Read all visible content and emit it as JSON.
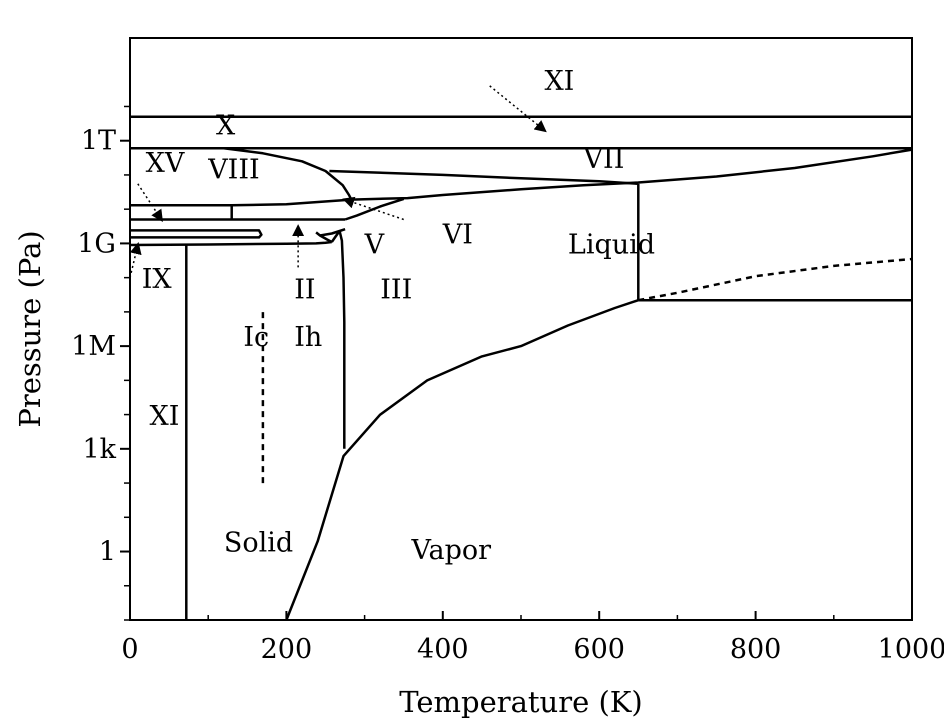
{
  "chart_data": {
    "type": "line",
    "xlabel": "Temperature (K)",
    "ylabel": "Pressure (Pa)",
    "x_range": [
      0,
      1000
    ],
    "y_scale": "log10",
    "y_range": [
      0.01,
      1000000000000000.0
    ],
    "x_ticks": [
      {
        "value": 0,
        "label": "0"
      },
      {
        "value": 200,
        "label": "200"
      },
      {
        "value": 400,
        "label": "400"
      },
      {
        "value": 600,
        "label": "600"
      },
      {
        "value": 800,
        "label": "800"
      },
      {
        "value": 1000,
        "label": "1000"
      }
    ],
    "y_ticks": [
      {
        "value": 1,
        "label": "1"
      },
      {
        "value": 1000,
        "label": "1k"
      },
      {
        "value": 1000000,
        "label": "1M"
      },
      {
        "value": 1000000000,
        "label": "1G"
      },
      {
        "value": 1000000000000,
        "label": "1T"
      }
    ],
    "grid": false,
    "line_color": "#000000",
    "regions": [
      {
        "label": "XI",
        "x": 530,
        "y": 30000000000000.0
      },
      {
        "label": "X",
        "x": 110,
        "y": 1500000000000.0
      },
      {
        "label": "XV",
        "x": 20,
        "y": 120000000000.0
      },
      {
        "label": "VIII",
        "x": 100,
        "y": 80000000000.0
      },
      {
        "label": "VII",
        "x": 580,
        "y": 160000000000.0
      },
      {
        "label": "1G",
        "x": 0,
        "y": 0
      },
      {
        "label": "VI",
        "x": 400,
        "y": 1000000000.0
      },
      {
        "label": "V",
        "x": 300,
        "y": 500000000.0
      },
      {
        "label": "IX",
        "x": 15,
        "y": 50000000.0
      },
      {
        "label": "II",
        "x": 210,
        "y": 25000000.0
      },
      {
        "label": "III",
        "x": 320,
        "y": 25000000.0
      },
      {
        "label": "Liquid",
        "x": 560,
        "y": 500000000.0
      },
      {
        "label": "Ic",
        "x": 145,
        "y": 1000000.0
      },
      {
        "label": "Ih",
        "x": 210,
        "y": 1000000.0
      },
      {
        "label": "XI",
        "x": 25,
        "y": 5000.0
      },
      {
        "label": "Solid",
        "x": 120,
        "y": 1
      },
      {
        "label": "Vapor",
        "x": 360,
        "y": 0.6
      }
    ],
    "series": [
      {
        "style": "solid",
        "x": [
          0,
          1000
        ],
        "y": [
          5000000000000.0,
          5000000000000.0
        ]
      },
      {
        "style": "solid",
        "x": [
          0,
          1000
        ],
        "y": [
          600000000000.0,
          600000000000.0
        ]
      },
      {
        "style": "solid",
        "x": [
          120,
          170,
          220,
          250,
          272,
          280,
          283
        ],
        "y": [
          600000000000.0,
          430000000000.0,
          250000000000.0,
          130000000000.0,
          50000000000.0,
          26000000000.0,
          19000000000.0
        ]
      },
      {
        "style": "solid",
        "x": [
          255,
          400,
          500,
          600,
          650
        ],
        "y": [
          130000000000.0,
          100000000000.0,
          80000000000.0,
          65000000000.0,
          55000000000.0
        ]
      },
      {
        "style": "solid",
        "x": [
          0,
          130,
          200,
          283,
          355,
          400,
          500,
          580,
          650,
          750,
          850,
          950,
          1000
        ],
        "y": [
          13000000000.0,
          13000000000.0,
          14000000000.0,
          19000000000.0,
          21000000000.0,
          26000000000.0,
          38000000000.0,
          50000000000.0,
          60000000000.0,
          90000000000.0,
          160000000000.0,
          350000000000.0,
          550000000000.0
        ]
      },
      {
        "style": "solid",
        "x": [
          130,
          130
        ],
        "y": [
          5000000000.0,
          13000000000.0
        ]
      },
      {
        "style": "solid",
        "x": [
          0,
          275
        ],
        "y": [
          5000000000.0,
          5000000000.0
        ]
      },
      {
        "style": "solid",
        "x": [
          275,
          290,
          320,
          350
        ],
        "y": [
          5000000000.0,
          6500000000.0,
          12000000000.0,
          20000000000.0
        ]
      },
      {
        "style": "solid",
        "x": [
          0,
          165,
          168,
          165,
          0
        ],
        "y": [
          2400000000.0,
          2400000000.0,
          1800000000.0,
          1500000000.0,
          1500000000.0
        ]
      },
      {
        "style": "solid",
        "x": [
          0,
          100,
          200,
          238,
          250,
          258
        ],
        "y": [
          900000000.0,
          930000000.0,
          980000000.0,
          1000000000.0,
          1050000000.0,
          1100000000.0
        ]
      },
      {
        "style": "solid",
        "x": [
          238,
          243,
          252,
          258
        ],
        "y": [
          2100000000.0,
          1700000000.0,
          1300000000.0,
          1100000000.0
        ]
      },
      {
        "style": "solid",
        "x": [
          243,
          258,
          268,
          275
        ],
        "y": [
          1700000000.0,
          1950000000.0,
          2300000000.0,
          2600000000.0
        ]
      },
      {
        "style": "solid",
        "x": [
          258,
          263,
          268
        ],
        "y": [
          1100000000.0,
          1600000000.0,
          2300000000.0
        ]
      },
      {
        "style": "solid",
        "x": [
          268,
          271,
          273,
          274,
          274
        ],
        "y": [
          2300000000.0,
          1200000000.0,
          100000000.0,
          5000000.0,
          1000.0
        ]
      },
      {
        "style": "solid",
        "x": [
          72,
          72
        ],
        "y": [
          900000000.0,
          0.01
        ]
      },
      {
        "style": "dashed",
        "x": [
          170,
          170
        ],
        "y": [
          100.0,
          10000000.0
        ]
      },
      {
        "style": "solid",
        "x": [
          200,
          240,
          273,
          320,
          380,
          450,
          500,
          560,
          620,
          650
        ],
        "y": [
          0.01,
          2,
          611,
          10000.0,
          100000.0,
          500000.0,
          1000000.0,
          4000000.0,
          13000000.0,
          22000000.0
        ]
      },
      {
        "style": "solid",
        "x": [
          650,
          650
        ],
        "y": [
          22000000.0,
          55000000000.0
        ]
      },
      {
        "style": "solid",
        "x": [
          650,
          1000
        ],
        "y": [
          22000000.0,
          22000000.0
        ]
      },
      {
        "style": "dashed",
        "x": [
          650,
          700,
          800,
          900,
          1000
        ],
        "y": [
          22000000.0,
          36000000.0,
          110000000.0,
          220000000.0,
          350000000.0
        ]
      }
    ],
    "arrows": [
      {
        "from_x": 460,
        "from_y": 40000000000000.0,
        "to_x": 530,
        "to_y": 2000000000000.0
      },
      {
        "from_x": 10,
        "from_y": 55000000000.0,
        "to_x": 40,
        "to_y": 5000000000.0
      },
      {
        "from_x": 350,
        "from_y": 5000000000.0,
        "to_x": 275,
        "to_y": 19000000000.0
      },
      {
        "from_x": 0,
        "from_y": 100000000.0,
        "to_x": 10,
        "to_y": 900000000.0
      },
      {
        "from_x": 215,
        "from_y": 200000000.0,
        "to_x": 215,
        "to_y": 3000000000.0
      }
    ]
  }
}
